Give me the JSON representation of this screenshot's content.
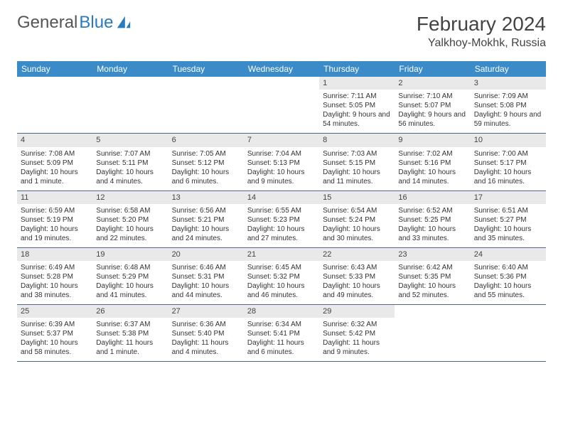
{
  "logo": {
    "text1": "General",
    "text2": "Blue"
  },
  "title": "February 2024",
  "location": "Yalkhoy-Mokhk, Russia",
  "colors": {
    "header_bg": "#3b8bc9",
    "header_text": "#ffffff",
    "daynum_bg": "#e9e9e9",
    "border": "#4a6a8a",
    "logo_gray": "#555555",
    "logo_blue": "#2a7bbd"
  },
  "day_names": [
    "Sunday",
    "Monday",
    "Tuesday",
    "Wednesday",
    "Thursday",
    "Friday",
    "Saturday"
  ],
  "weeks": [
    [
      {
        "blank": true
      },
      {
        "blank": true
      },
      {
        "blank": true
      },
      {
        "blank": true
      },
      {
        "num": "1",
        "sunrise": "7:11 AM",
        "sunset": "5:05 PM",
        "daylight": "9 hours and 54 minutes."
      },
      {
        "num": "2",
        "sunrise": "7:10 AM",
        "sunset": "5:07 PM",
        "daylight": "9 hours and 56 minutes."
      },
      {
        "num": "3",
        "sunrise": "7:09 AM",
        "sunset": "5:08 PM",
        "daylight": "9 hours and 59 minutes."
      }
    ],
    [
      {
        "num": "4",
        "sunrise": "7:08 AM",
        "sunset": "5:09 PM",
        "daylight": "10 hours and 1 minute."
      },
      {
        "num": "5",
        "sunrise": "7:07 AM",
        "sunset": "5:11 PM",
        "daylight": "10 hours and 4 minutes."
      },
      {
        "num": "6",
        "sunrise": "7:05 AM",
        "sunset": "5:12 PM",
        "daylight": "10 hours and 6 minutes."
      },
      {
        "num": "7",
        "sunrise": "7:04 AM",
        "sunset": "5:13 PM",
        "daylight": "10 hours and 9 minutes."
      },
      {
        "num": "8",
        "sunrise": "7:03 AM",
        "sunset": "5:15 PM",
        "daylight": "10 hours and 11 minutes."
      },
      {
        "num": "9",
        "sunrise": "7:02 AM",
        "sunset": "5:16 PM",
        "daylight": "10 hours and 14 minutes."
      },
      {
        "num": "10",
        "sunrise": "7:00 AM",
        "sunset": "5:17 PM",
        "daylight": "10 hours and 16 minutes."
      }
    ],
    [
      {
        "num": "11",
        "sunrise": "6:59 AM",
        "sunset": "5:19 PM",
        "daylight": "10 hours and 19 minutes."
      },
      {
        "num": "12",
        "sunrise": "6:58 AM",
        "sunset": "5:20 PM",
        "daylight": "10 hours and 22 minutes."
      },
      {
        "num": "13",
        "sunrise": "6:56 AM",
        "sunset": "5:21 PM",
        "daylight": "10 hours and 24 minutes."
      },
      {
        "num": "14",
        "sunrise": "6:55 AM",
        "sunset": "5:23 PM",
        "daylight": "10 hours and 27 minutes."
      },
      {
        "num": "15",
        "sunrise": "6:54 AM",
        "sunset": "5:24 PM",
        "daylight": "10 hours and 30 minutes."
      },
      {
        "num": "16",
        "sunrise": "6:52 AM",
        "sunset": "5:25 PM",
        "daylight": "10 hours and 33 minutes."
      },
      {
        "num": "17",
        "sunrise": "6:51 AM",
        "sunset": "5:27 PM",
        "daylight": "10 hours and 35 minutes."
      }
    ],
    [
      {
        "num": "18",
        "sunrise": "6:49 AM",
        "sunset": "5:28 PM",
        "daylight": "10 hours and 38 minutes."
      },
      {
        "num": "19",
        "sunrise": "6:48 AM",
        "sunset": "5:29 PM",
        "daylight": "10 hours and 41 minutes."
      },
      {
        "num": "20",
        "sunrise": "6:46 AM",
        "sunset": "5:31 PM",
        "daylight": "10 hours and 44 minutes."
      },
      {
        "num": "21",
        "sunrise": "6:45 AM",
        "sunset": "5:32 PM",
        "daylight": "10 hours and 46 minutes."
      },
      {
        "num": "22",
        "sunrise": "6:43 AM",
        "sunset": "5:33 PM",
        "daylight": "10 hours and 49 minutes."
      },
      {
        "num": "23",
        "sunrise": "6:42 AM",
        "sunset": "5:35 PM",
        "daylight": "10 hours and 52 minutes."
      },
      {
        "num": "24",
        "sunrise": "6:40 AM",
        "sunset": "5:36 PM",
        "daylight": "10 hours and 55 minutes."
      }
    ],
    [
      {
        "num": "25",
        "sunrise": "6:39 AM",
        "sunset": "5:37 PM",
        "daylight": "10 hours and 58 minutes."
      },
      {
        "num": "26",
        "sunrise": "6:37 AM",
        "sunset": "5:38 PM",
        "daylight": "11 hours and 1 minute."
      },
      {
        "num": "27",
        "sunrise": "6:36 AM",
        "sunset": "5:40 PM",
        "daylight": "11 hours and 4 minutes."
      },
      {
        "num": "28",
        "sunrise": "6:34 AM",
        "sunset": "5:41 PM",
        "daylight": "11 hours and 6 minutes."
      },
      {
        "num": "29",
        "sunrise": "6:32 AM",
        "sunset": "5:42 PM",
        "daylight": "11 hours and 9 minutes."
      },
      {
        "blank": true
      },
      {
        "blank": true
      }
    ]
  ],
  "labels": {
    "sunrise": "Sunrise: ",
    "sunset": "Sunset: ",
    "daylight": "Daylight: "
  }
}
